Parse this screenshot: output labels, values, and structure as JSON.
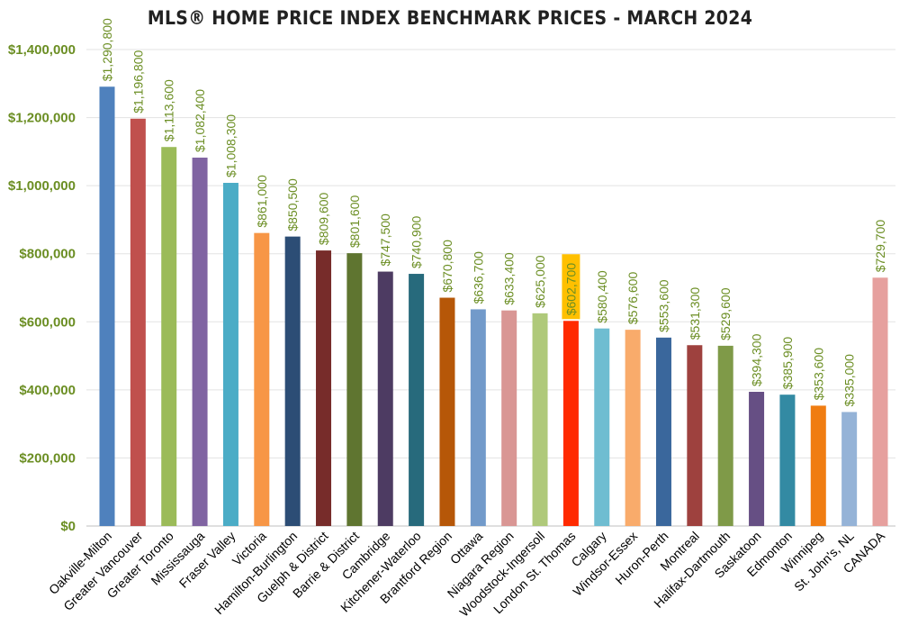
{
  "chart_data": {
    "type": "bar",
    "title": "MLS® HOME PRICE INDEX BENCHMARK PRICES - MARCH 2024",
    "xlabel": "",
    "ylabel": "",
    "ylim": [
      0,
      1400000
    ],
    "yticks": [
      "$0",
      "$200,000",
      "$400,000",
      "$600,000",
      "$800,000",
      "$1,000,000",
      "$1,200,000",
      "$1,400,000"
    ],
    "ytick_values": [
      0,
      200000,
      400000,
      600000,
      800000,
      1000000,
      1200000,
      1400000
    ],
    "grid": true,
    "legend": "none",
    "categories": [
      "Oakville-Milton",
      "Greater Vancouver",
      "Greater Toronto",
      "Mississauga",
      "Fraser Valley",
      "Victoria",
      "Hamilton-Burlington",
      "Guelph & District",
      "Barrie & District",
      "Cambridge",
      "Kitchener-Waterloo",
      "Brantford Region",
      "Ottawa",
      "Niagara Region",
      "Woodstock-Ingersoll",
      "London St. Thomas",
      "Calgary",
      "Windsor-Essex",
      "Huron-Perth",
      "Montreal",
      "Halifax-Dartmouth",
      "Saskatoon",
      "Edmonton",
      "Winnipeg",
      "St. John's, NL",
      "CANADA"
    ],
    "values": [
      1290800,
      1196800,
      1113600,
      1082400,
      1008300,
      861000,
      850500,
      809600,
      801600,
      747500,
      740900,
      670800,
      636700,
      633400,
      625000,
      602700,
      580400,
      576600,
      553600,
      531300,
      529600,
      394300,
      385900,
      353600,
      335000,
      729700
    ],
    "data_labels": [
      "$1,290,800",
      "$1,196,800",
      "$1,113,600",
      "$1,082,400",
      "$1,008,300",
      "$861,000",
      "$850,500",
      "$809,600",
      "$801,600",
      "$747,500",
      "$740,900",
      "$670,800",
      "$636,700",
      "$633,400",
      "$625,000",
      "$602,700",
      "$580,400",
      "$576,600",
      "$553,600",
      "$531,300",
      "$529,600",
      "$394,300",
      "$385,900",
      "$353,600",
      "$335,000",
      "$729,700"
    ],
    "colors": [
      "#4f81bd",
      "#c0504d",
      "#9bbb59",
      "#8064a2",
      "#4bacc6",
      "#f79646",
      "#2c4d75",
      "#772c2a",
      "#5f7530",
      "#4d3b62",
      "#276a7c",
      "#b65708",
      "#729aca",
      "#d99694",
      "#afc97a",
      "#ff2a00",
      "#6fbdd1",
      "#f9ab6b",
      "#3a679c",
      "#9e413e",
      "#7f9a48",
      "#664f84",
      "#338aa3",
      "#f07d12",
      "#95b3d7",
      "#e6a09e"
    ],
    "highlight_index": 15,
    "highlight_color": "#ffc000"
  }
}
